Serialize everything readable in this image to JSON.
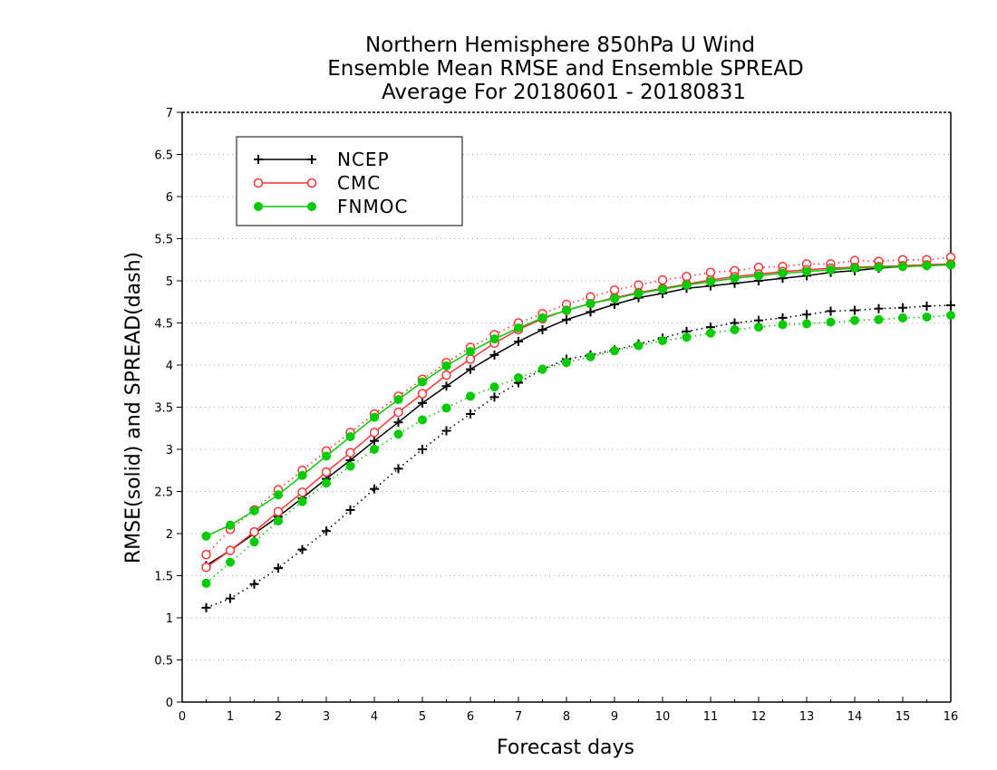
{
  "chart_data": {
    "type": "line",
    "title_lines": [
      "Northern Hemisphere 850hPa U Wind",
      "Ensemble Mean RMSE and Ensemble SPREAD",
      "Average For 20180601 - 20180831"
    ],
    "xlabel": "Forecast days",
    "ylabel": "RMSE(solid) and SPREAD(dash)",
    "xlim": [
      0,
      16
    ],
    "ylim": [
      0,
      7
    ],
    "x_ticks": [
      "0",
      "1",
      "2",
      "3",
      "4",
      "5",
      "6",
      "7",
      "8",
      "9",
      "10",
      "11",
      "12",
      "13",
      "14",
      "15",
      "16"
    ],
    "y_ticks": [
      "0",
      "0.5",
      "1",
      "1.5",
      "2",
      "2.5",
      "3",
      "3.5",
      "4",
      "4.5",
      "5",
      "5.5",
      "6",
      "6.5",
      "7"
    ],
    "grid": "horizontal dotted",
    "legend_position": "top-left",
    "x": [
      0.5,
      1,
      1.5,
      2,
      2.5,
      3,
      3.5,
      4,
      4.5,
      5,
      5.5,
      6,
      6.5,
      7,
      7.5,
      8,
      8.5,
      9,
      9.5,
      10,
      10.5,
      11,
      11.5,
      12,
      12.5,
      13,
      13.5,
      14,
      14.5,
      15,
      15.5,
      16
    ],
    "series": [
      {
        "name": "NCEP",
        "color": "#000000",
        "marker": "plus",
        "rmse": [
          1.62,
          1.8,
          2.0,
          2.2,
          2.42,
          2.65,
          2.87,
          3.1,
          3.32,
          3.55,
          3.75,
          3.95,
          4.12,
          4.28,
          4.42,
          4.54,
          4.63,
          4.72,
          4.8,
          4.85,
          4.91,
          4.94,
          4.97,
          5.0,
          5.03,
          5.06,
          5.1,
          5.12,
          5.15,
          5.17,
          5.18,
          5.19
        ],
        "spread": [
          1.12,
          1.23,
          1.4,
          1.59,
          1.81,
          2.03,
          2.28,
          2.53,
          2.77,
          3.0,
          3.22,
          3.42,
          3.62,
          3.79,
          3.95,
          4.07,
          4.12,
          4.18,
          4.25,
          4.32,
          4.4,
          4.45,
          4.5,
          4.53,
          4.56,
          4.6,
          4.64,
          4.65,
          4.67,
          4.68,
          4.7,
          4.71
        ]
      },
      {
        "name": "CMC",
        "color": "#ff3333",
        "marker": "open-circle",
        "rmse": [
          1.6,
          1.8,
          2.02,
          2.26,
          2.49,
          2.73,
          2.96,
          3.2,
          3.44,
          3.66,
          3.88,
          4.07,
          4.26,
          4.42,
          4.55,
          4.65,
          4.73,
          4.8,
          4.86,
          4.91,
          4.96,
          5.01,
          5.05,
          5.08,
          5.11,
          5.13,
          5.15,
          5.16,
          5.17,
          5.18,
          5.19,
          5.2
        ],
        "spread": [
          1.75,
          2.05,
          2.28,
          2.52,
          2.75,
          2.98,
          3.2,
          3.42,
          3.63,
          3.83,
          4.03,
          4.21,
          4.36,
          4.5,
          4.61,
          4.72,
          4.81,
          4.89,
          4.95,
          5.01,
          5.05,
          5.1,
          5.12,
          5.16,
          5.17,
          5.2,
          5.2,
          5.24,
          5.23,
          5.25,
          5.25,
          5.28
        ]
      },
      {
        "name": "FNMOC",
        "color": "#00cc00",
        "marker": "filled-circle",
        "rmse": [
          1.97,
          2.1,
          2.27,
          2.46,
          2.69,
          2.92,
          3.15,
          3.38,
          3.59,
          3.8,
          3.99,
          4.16,
          4.31,
          4.44,
          4.56,
          4.65,
          4.73,
          4.79,
          4.85,
          4.9,
          4.95,
          4.99,
          5.03,
          5.06,
          5.09,
          5.11,
          5.13,
          5.15,
          5.16,
          5.17,
          5.18,
          5.19
        ],
        "spread": [
          1.41,
          1.66,
          1.9,
          2.15,
          2.38,
          2.6,
          2.8,
          3.0,
          3.18,
          3.35,
          3.49,
          3.63,
          3.74,
          3.85,
          3.95,
          4.03,
          4.1,
          4.17,
          4.23,
          4.29,
          4.33,
          4.38,
          4.42,
          4.45,
          4.48,
          4.49,
          4.51,
          4.53,
          4.54,
          4.56,
          4.57,
          4.59
        ]
      }
    ]
  }
}
